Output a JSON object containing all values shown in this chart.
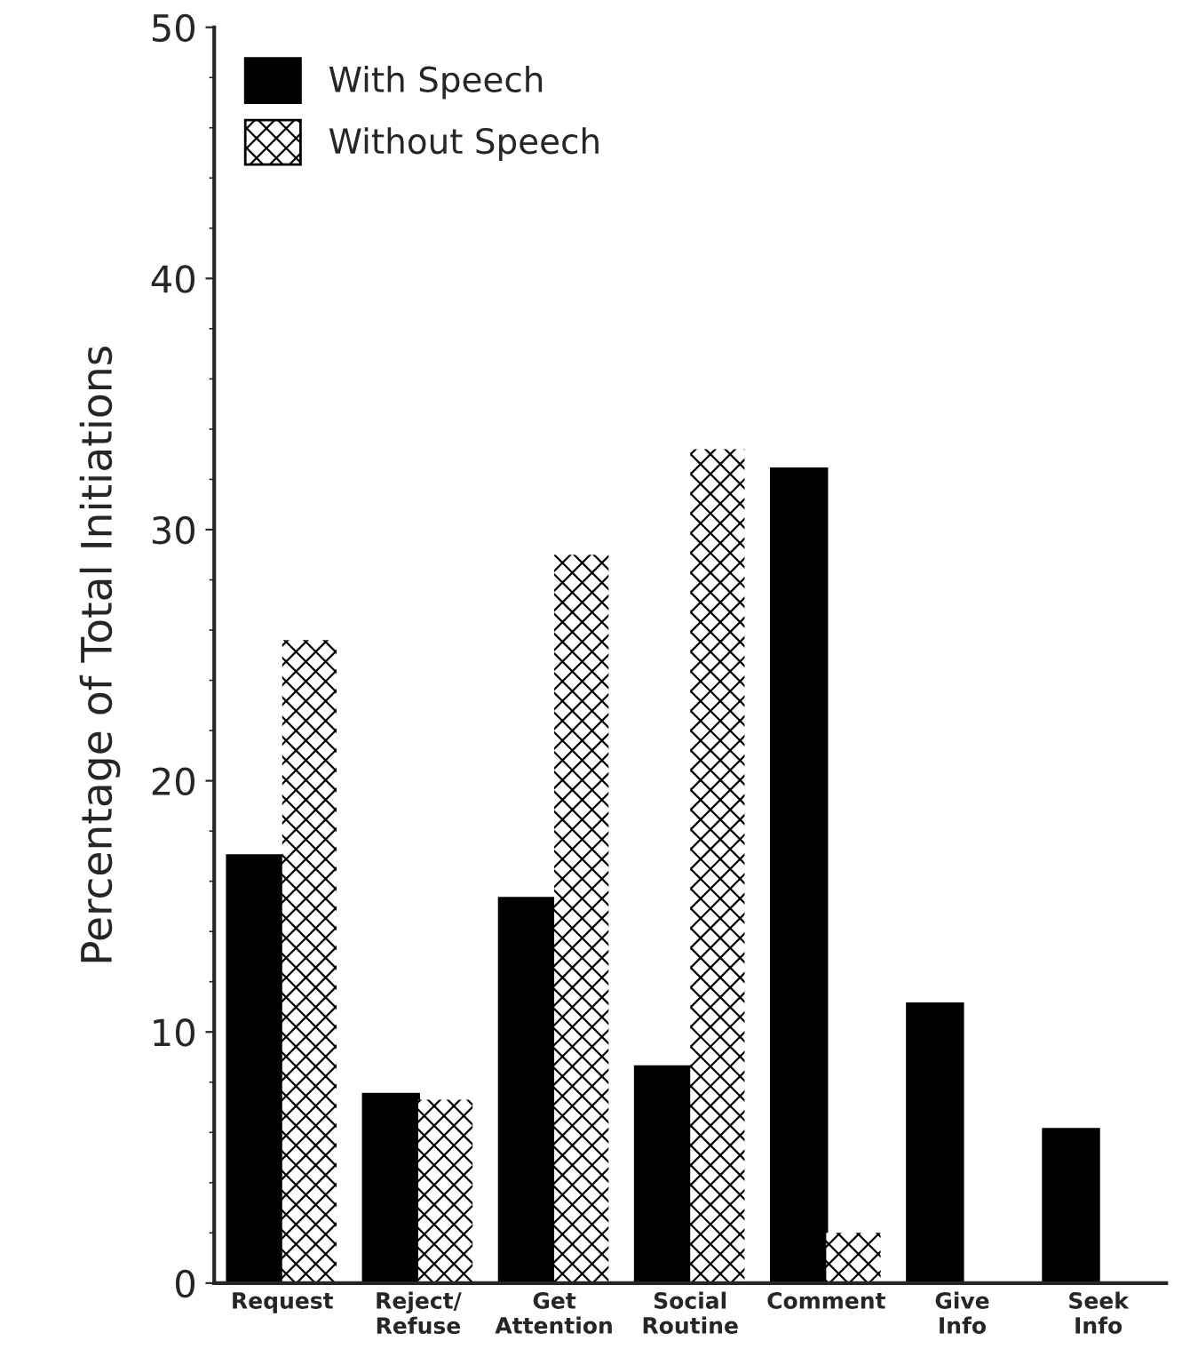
{
  "chart_data": {
    "type": "bar",
    "ylabel": "Percentage of Total Initiations",
    "categories": [
      "Request",
      "Reject/\nRefuse",
      "Get\nAttention",
      "Social\nRoutine",
      "Comment",
      "Give\nInfo",
      "Seek\nInfo"
    ],
    "series": [
      {
        "name": "With Speech",
        "color": "#000000",
        "values": [
          17.0,
          7.5,
          15.3,
          8.6,
          32.4,
          11.1,
          6.1
        ]
      },
      {
        "name": "Without Speech",
        "color": "#ffffff",
        "values": [
          25.6,
          7.3,
          29.0,
          33.2,
          2.0,
          0,
          0
        ]
      }
    ],
    "ylim": [
      0,
      50
    ],
    "yticks": [
      0,
      10,
      20,
      30,
      40,
      50
    ],
    "grid": false,
    "legend": "top left"
  }
}
